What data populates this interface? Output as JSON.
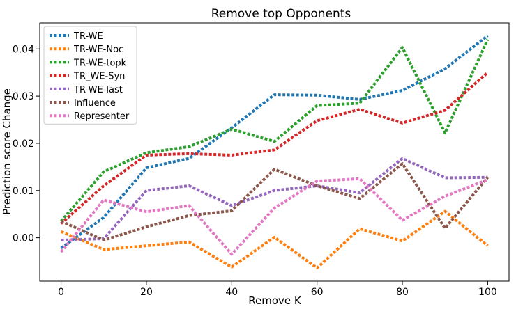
{
  "chart_data": {
    "type": "line",
    "title": "Remove top Opponents",
    "xlabel": "Remove K",
    "ylabel": "Prediction score Change",
    "xlim": [
      -5,
      105
    ],
    "ylim": [
      -0.0092,
      0.0455
    ],
    "x_ticks": [
      0,
      20,
      40,
      60,
      80,
      100
    ],
    "y_ticks": [
      0.0,
      0.01,
      0.02,
      0.03,
      0.04
    ],
    "y_tick_labels": [
      "0.00",
      "0.01",
      "0.02",
      "0.03",
      "0.04"
    ],
    "grid": false,
    "legend_position": "top-left",
    "line_style": "dotted",
    "x": [
      0,
      10,
      20,
      30,
      40,
      50,
      60,
      70,
      80,
      90,
      100
    ],
    "series": [
      {
        "name": "TR-WE",
        "color": "#1f77b4",
        "values": [
          -0.0022,
          0.0043,
          0.0148,
          0.0168,
          0.0233,
          0.0303,
          0.0302,
          0.0293,
          0.0312,
          0.0358,
          0.0428
        ]
      },
      {
        "name": "TR-WE-Noc",
        "color": "#ff7f0e",
        "values": [
          0.0013,
          -0.0025,
          -0.0017,
          -0.0009,
          -0.0062,
          0.0001,
          -0.0064,
          0.0019,
          -0.0007,
          0.0056,
          -0.0017
        ]
      },
      {
        "name": "TR-WE-topk",
        "color": "#2ca02c",
        "values": [
          0.0035,
          0.014,
          0.018,
          0.0193,
          0.023,
          0.0204,
          0.028,
          0.0285,
          0.0403,
          0.0222,
          0.042
        ]
      },
      {
        "name": "TR_WE-Syn",
        "color": "#d62728",
        "values": [
          0.003,
          0.011,
          0.0175,
          0.0178,
          0.0175,
          0.0186,
          0.0248,
          0.0272,
          0.0243,
          0.027,
          0.035
        ]
      },
      {
        "name": "TR-WE-last",
        "color": "#9467bd",
        "values": [
          -0.0005,
          -0.0002,
          0.01,
          0.011,
          0.0068,
          0.01,
          0.011,
          0.0095,
          0.0168,
          0.0127,
          0.0128
        ]
      },
      {
        "name": "Influence",
        "color": "#8c564b",
        "values": [
          0.0035,
          -0.0005,
          0.0023,
          0.0047,
          0.0057,
          0.0145,
          0.011,
          0.0083,
          0.0157,
          0.002,
          0.0128
        ]
      },
      {
        "name": "Representer",
        "color": "#e377c2",
        "values": [
          -0.003,
          0.008,
          0.0055,
          0.0068,
          -0.0035,
          0.0063,
          0.012,
          0.0125,
          0.0037,
          0.0088,
          0.0123
        ]
      }
    ]
  }
}
